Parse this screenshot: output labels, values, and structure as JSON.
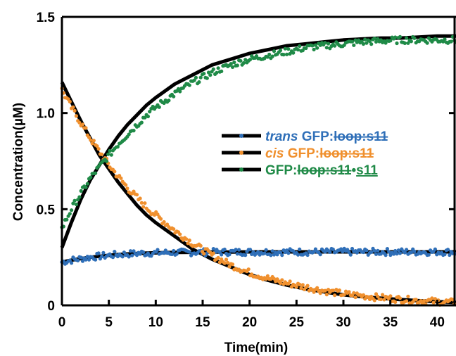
{
  "chart_data": {
    "type": "scatter",
    "xlabel": "Time(min)",
    "ylabel": "Concentration(µM)",
    "xlim": [
      0,
      42
    ],
    "ylim": [
      0,
      1.5
    ],
    "x_ticks": [
      "0",
      "5",
      "10",
      "15",
      "20",
      "25",
      "30",
      "35",
      "40"
    ],
    "y_ticks": [
      "0",
      "0.5",
      "1.0",
      "1.5"
    ],
    "grid": false,
    "legend_position": "center",
    "legend": [
      {
        "prefix": "trans",
        "main": " GFP:",
        "struck": "loop:s11",
        "suffix": "",
        "underlined": "",
        "color": "#2f6fb8"
      },
      {
        "prefix": "cis",
        "main": " GFP:",
        "struck": "loop:s11",
        "suffix": "",
        "underlined": "",
        "color": "#f0902e"
      },
      {
        "prefix": "",
        "main": "GFP:",
        "struck": "loop:s11",
        "suffix": "•",
        "underlined": "s11",
        "color": "#1f8a47"
      }
    ],
    "series": [
      {
        "color": "#2f6fb8",
        "x": [
          0,
          1,
          2,
          3,
          4,
          5,
          6,
          7,
          8,
          9,
          10,
          12,
          14,
          16,
          18,
          20,
          22,
          24,
          26,
          28,
          30,
          32,
          34,
          36,
          38,
          40,
          42
        ],
        "y": [
          0.225,
          0.235,
          0.243,
          0.25,
          0.255,
          0.26,
          0.264,
          0.267,
          0.27,
          0.272,
          0.273,
          0.275,
          0.276,
          0.277,
          0.277,
          0.278,
          0.278,
          0.278,
          0.278,
          0.278,
          0.278,
          0.278,
          0.278,
          0.278,
          0.278,
          0.278,
          0.278
        ]
      },
      {
        "color": "#f0902e",
        "x": [
          0,
          1,
          2,
          3,
          4,
          5,
          6,
          7,
          8,
          9,
          10,
          12,
          14,
          16,
          18,
          20,
          22,
          24,
          26,
          28,
          30,
          32,
          34,
          36,
          38,
          40,
          42
        ],
        "y": [
          1.12,
          1.03,
          0.95,
          0.87,
          0.8,
          0.73,
          0.67,
          0.61,
          0.56,
          0.51,
          0.47,
          0.39,
          0.32,
          0.26,
          0.21,
          0.17,
          0.14,
          0.115,
          0.095,
          0.075,
          0.06,
          0.05,
          0.04,
          0.032,
          0.025,
          0.02,
          0.015
        ]
      },
      {
        "color": "#1f8a47",
        "x": [
          0,
          1,
          2,
          3,
          4,
          5,
          6,
          7,
          8,
          9,
          10,
          12,
          14,
          16,
          18,
          20,
          22,
          24,
          26,
          28,
          30,
          32,
          34,
          36,
          38,
          40,
          42
        ],
        "y": [
          0.4,
          0.5,
          0.58,
          0.66,
          0.72,
          0.78,
          0.84,
          0.89,
          0.94,
          0.99,
          1.03,
          1.1,
          1.16,
          1.21,
          1.25,
          1.28,
          1.3,
          1.32,
          1.34,
          1.35,
          1.36,
          1.37,
          1.375,
          1.38,
          1.38,
          1.38,
          1.38
        ]
      }
    ],
    "fits": [
      {
        "color": "#000000",
        "x": [
          0,
          1,
          2,
          3,
          4,
          5,
          6,
          7,
          8,
          9,
          10,
          12,
          14,
          16,
          18,
          20,
          22,
          24,
          26,
          28,
          30,
          32,
          34,
          36,
          38,
          40,
          42
        ],
        "y": [
          0.225,
          0.235,
          0.243,
          0.25,
          0.255,
          0.26,
          0.264,
          0.267,
          0.27,
          0.272,
          0.273,
          0.275,
          0.276,
          0.277,
          0.277,
          0.278,
          0.278,
          0.278,
          0.278,
          0.278,
          0.278,
          0.278,
          0.278,
          0.278,
          0.278,
          0.278,
          0.278
        ]
      },
      {
        "color": "#000000",
        "x": [
          0,
          1,
          2,
          3,
          4,
          5,
          6,
          7,
          8,
          9,
          10,
          12,
          14,
          16,
          18,
          20,
          22,
          24,
          26,
          28,
          30,
          32,
          34,
          36,
          38,
          40,
          42
        ],
        "y": [
          1.16,
          1.06,
          0.96,
          0.87,
          0.78,
          0.71,
          0.64,
          0.58,
          0.52,
          0.47,
          0.43,
          0.36,
          0.29,
          0.24,
          0.2,
          0.16,
          0.13,
          0.105,
          0.085,
          0.07,
          0.055,
          0.045,
          0.037,
          0.03,
          0.024,
          0.019,
          0.015
        ]
      },
      {
        "color": "#000000",
        "x": [
          0,
          1,
          2,
          3,
          4,
          5,
          6,
          7,
          8,
          9,
          10,
          12,
          14,
          16,
          18,
          20,
          22,
          24,
          26,
          28,
          30,
          32,
          34,
          36,
          38,
          40,
          42
        ],
        "y": [
          0.3,
          0.43,
          0.55,
          0.65,
          0.73,
          0.81,
          0.88,
          0.94,
          0.99,
          1.04,
          1.08,
          1.15,
          1.2,
          1.25,
          1.28,
          1.31,
          1.33,
          1.35,
          1.36,
          1.37,
          1.38,
          1.385,
          1.39,
          1.39,
          1.395,
          1.4,
          1.4
        ]
      }
    ]
  }
}
